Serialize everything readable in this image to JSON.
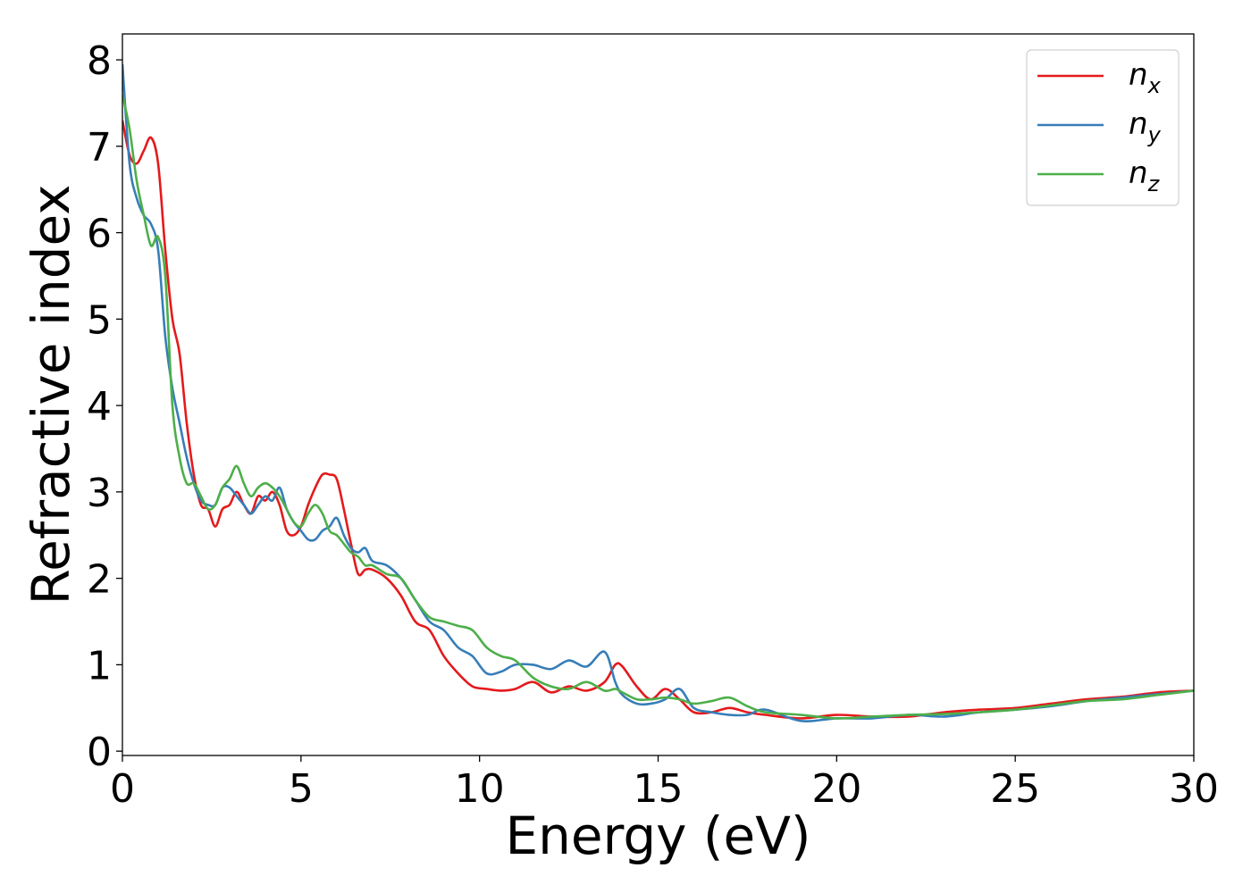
{
  "chart_data": {
    "type": "line",
    "xlabel": "Energy (eV)",
    "ylabel": "Refractive index",
    "xlim": [
      0,
      30
    ],
    "ylim": [
      -0.05,
      8.3
    ],
    "xticks": [
      0,
      5,
      10,
      15,
      20,
      25,
      30
    ],
    "yticks": [
      0,
      1,
      2,
      3,
      4,
      5,
      6,
      7,
      8
    ],
    "grid": false,
    "legend_position": "top-right",
    "series": [
      {
        "name": "n",
        "subscript": "x",
        "color": "#e41a1c",
        "x": [
          0,
          0.2,
          0.4,
          0.6,
          0.8,
          1.0,
          1.2,
          1.4,
          1.6,
          1.8,
          2.0,
          2.2,
          2.4,
          2.6,
          2.8,
          3.0,
          3.2,
          3.4,
          3.6,
          3.8,
          4.0,
          4.2,
          4.4,
          4.6,
          4.8,
          5.0,
          5.2,
          5.4,
          5.6,
          5.8,
          6.0,
          6.2,
          6.4,
          6.6,
          6.8,
          7.0,
          7.4,
          7.8,
          8.2,
          8.6,
          9.0,
          9.4,
          9.8,
          10.2,
          10.6,
          11.0,
          11.5,
          12.0,
          12.5,
          13.0,
          13.5,
          13.8,
          14.0,
          14.4,
          14.8,
          15.2,
          15.6,
          16.0,
          16.5,
          17.0,
          17.5,
          18.0,
          19.0,
          20.0,
          21.0,
          22.0,
          23.0,
          24.0,
          25.0,
          26.0,
          27.0,
          28.0,
          29.0,
          30.0
        ],
        "y": [
          7.3,
          6.9,
          6.8,
          6.95,
          7.1,
          6.8,
          5.8,
          5.0,
          4.6,
          3.8,
          3.2,
          2.85,
          2.8,
          2.6,
          2.8,
          2.85,
          3.0,
          2.85,
          2.75,
          2.95,
          2.9,
          3.0,
          2.85,
          2.55,
          2.5,
          2.6,
          2.85,
          3.05,
          3.2,
          3.2,
          3.15,
          2.8,
          2.4,
          2.05,
          2.1,
          2.1,
          2.0,
          1.8,
          1.5,
          1.4,
          1.1,
          0.9,
          0.75,
          0.72,
          0.7,
          0.72,
          0.8,
          0.68,
          0.75,
          0.7,
          0.8,
          1.0,
          0.98,
          0.75,
          0.6,
          0.72,
          0.6,
          0.45,
          0.45,
          0.5,
          0.45,
          0.42,
          0.38,
          0.42,
          0.4,
          0.4,
          0.45,
          0.48,
          0.5,
          0.55,
          0.6,
          0.63,
          0.68,
          0.7
        ]
      },
      {
        "name": "n",
        "subscript": "y",
        "color": "#377eb8",
        "x": [
          0,
          0.2,
          0.4,
          0.6,
          0.8,
          1.0,
          1.2,
          1.4,
          1.6,
          1.8,
          2.0,
          2.2,
          2.4,
          2.6,
          2.8,
          3.0,
          3.2,
          3.4,
          3.6,
          3.8,
          4.0,
          4.2,
          4.4,
          4.6,
          4.8,
          5.0,
          5.2,
          5.4,
          5.6,
          5.8,
          6.0,
          6.2,
          6.4,
          6.6,
          6.8,
          7.0,
          7.4,
          7.8,
          8.2,
          8.6,
          9.0,
          9.4,
          9.8,
          10.2,
          10.6,
          11.0,
          11.5,
          12.0,
          12.5,
          13.0,
          13.5,
          13.8,
          14.0,
          14.4,
          14.8,
          15.2,
          15.6,
          16.0,
          16.5,
          17.0,
          17.5,
          18.0,
          19.0,
          20.0,
          21.0,
          22.0,
          23.0,
          24.0,
          25.0,
          26.0,
          27.0,
          28.0,
          29.0,
          30.0
        ],
        "y": [
          7.95,
          6.8,
          6.4,
          6.2,
          6.1,
          5.8,
          4.8,
          4.2,
          3.8,
          3.4,
          3.1,
          2.9,
          2.85,
          2.85,
          3.05,
          3.05,
          2.95,
          2.85,
          2.75,
          2.85,
          2.95,
          2.9,
          3.05,
          2.8,
          2.65,
          2.55,
          2.45,
          2.45,
          2.55,
          2.6,
          2.7,
          2.5,
          2.35,
          2.3,
          2.35,
          2.2,
          2.15,
          2.0,
          1.75,
          1.5,
          1.4,
          1.2,
          1.1,
          0.9,
          0.92,
          1.0,
          1.0,
          0.95,
          1.05,
          0.98,
          1.15,
          0.8,
          0.65,
          0.55,
          0.55,
          0.6,
          0.72,
          0.5,
          0.45,
          0.42,
          0.42,
          0.48,
          0.35,
          0.38,
          0.38,
          0.42,
          0.4,
          0.45,
          0.48,
          0.52,
          0.58,
          0.62,
          0.66,
          0.7
        ]
      },
      {
        "name": "n",
        "subscript": "z",
        "color": "#4daf4a",
        "x": [
          0,
          0.2,
          0.4,
          0.6,
          0.8,
          1.0,
          1.2,
          1.4,
          1.6,
          1.8,
          2.0,
          2.2,
          2.4,
          2.6,
          2.8,
          3.0,
          3.2,
          3.4,
          3.6,
          3.8,
          4.0,
          4.2,
          4.4,
          4.6,
          4.8,
          5.0,
          5.2,
          5.4,
          5.6,
          5.8,
          6.0,
          6.2,
          6.4,
          6.6,
          6.8,
          7.0,
          7.4,
          7.8,
          8.2,
          8.6,
          9.0,
          9.4,
          9.8,
          10.2,
          10.6,
          11.0,
          11.5,
          12.0,
          12.5,
          13.0,
          13.5,
          13.8,
          14.0,
          14.4,
          14.8,
          15.2,
          15.6,
          16.0,
          16.5,
          17.0,
          17.5,
          18.0,
          19.0,
          20.0,
          21.0,
          22.0,
          23.0,
          24.0,
          25.0,
          26.0,
          27.0,
          28.0,
          29.0,
          30.0
        ],
        "y": [
          7.6,
          7.2,
          6.6,
          6.2,
          5.85,
          5.95,
          5.5,
          4.0,
          3.4,
          3.1,
          3.1,
          2.95,
          2.8,
          2.85,
          3.05,
          3.15,
          3.3,
          3.1,
          2.95,
          3.05,
          3.1,
          3.05,
          2.95,
          2.8,
          2.65,
          2.6,
          2.75,
          2.85,
          2.75,
          2.55,
          2.5,
          2.4,
          2.3,
          2.25,
          2.15,
          2.15,
          2.05,
          2.0,
          1.75,
          1.55,
          1.5,
          1.45,
          1.4,
          1.2,
          1.1,
          1.05,
          0.85,
          0.75,
          0.72,
          0.8,
          0.7,
          0.72,
          0.68,
          0.6,
          0.6,
          0.62,
          0.6,
          0.55,
          0.58,
          0.62,
          0.52,
          0.45,
          0.42,
          0.38,
          0.4,
          0.42,
          0.43,
          0.45,
          0.48,
          0.53,
          0.58,
          0.6,
          0.65,
          0.7
        ]
      }
    ]
  }
}
